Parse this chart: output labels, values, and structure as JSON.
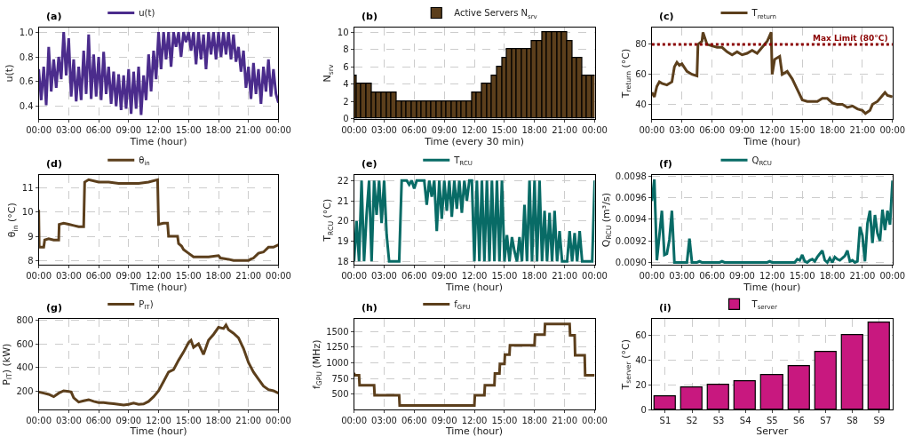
{
  "chart_data": [
    {
      "type": "line",
      "title": "(a)",
      "xlabel": "Time (hour)",
      "ylabel": "u(t)",
      "grid": true,
      "legend": "top",
      "x": [
        0,
        0.25,
        0.5,
        0.75,
        1,
        1.25,
        1.5,
        1.75,
        2,
        2.25,
        2.5,
        2.75,
        3,
        3.25,
        3.5,
        3.75,
        4,
        4.25,
        4.5,
        4.75,
        5,
        5.25,
        5.5,
        5.75,
        6,
        6.25,
        6.5,
        6.75,
        7,
        7.25,
        7.5,
        7.75,
        8,
        8.25,
        8.5,
        8.75,
        9,
        9.25,
        9.5,
        9.75,
        10,
        10.25,
        10.5,
        10.75,
        11,
        11.25,
        11.5,
        11.75,
        12,
        12.25,
        12.5,
        12.75,
        13,
        13.25,
        13.5,
        13.75,
        14,
        14.25,
        14.5,
        14.75,
        15,
        15.25,
        15.5,
        15.75,
        16,
        16.25,
        16.5,
        16.75,
        17,
        17.25,
        17.5,
        17.75,
        18,
        18.25,
        18.5,
        18.75,
        19,
        19.25,
        19.5,
        19.75,
        20,
        20.25,
        20.5,
        20.75,
        21,
        21.25,
        21.5,
        21.75,
        22,
        22.25,
        22.5,
        22.75,
        23,
        23.25,
        23.5,
        23.75,
        24
      ],
      "series": [
        {
          "name": "u(t)",
          "color": "#4b2c8c",
          "values": [
            0.7,
            0.45,
            0.72,
            0.41,
            0.88,
            0.52,
            0.78,
            0.55,
            0.8,
            0.62,
            1.0,
            0.65,
            0.95,
            0.48,
            0.78,
            0.44,
            0.72,
            0.45,
            0.85,
            0.5,
            0.98,
            0.46,
            0.82,
            0.48,
            0.8,
            0.45,
            0.84,
            0.5,
            0.72,
            0.42,
            0.68,
            0.4,
            0.66,
            0.37,
            0.65,
            0.38,
            0.7,
            0.34,
            0.68,
            0.38,
            0.72,
            0.33,
            0.65,
            0.45,
            0.82,
            0.52,
            0.85,
            0.62,
            1.0,
            0.7,
            1.0,
            0.78,
            1.0,
            0.72,
            1.0,
            0.88,
            1.0,
            0.8,
            1.0,
            0.92,
            1.0,
            0.85,
            1.0,
            0.74,
            1.0,
            0.78,
            0.98,
            0.7,
            1.0,
            0.82,
            1.0,
            0.78,
            1.0,
            0.8,
            1.0,
            0.82,
            1.0,
            0.78,
            0.98,
            0.76,
            0.88,
            0.68,
            0.85,
            0.55,
            0.72,
            0.46,
            0.75,
            0.5,
            0.7,
            0.42,
            0.72,
            0.52,
            0.78,
            0.48,
            0.7,
            0.5,
            0.43
          ]
        }
      ],
      "xlim": [
        0,
        24
      ],
      "ylim": [
        0.3,
        1.035
      ],
      "xticks": [
        {
          "value": 0,
          "label": "00:00"
        },
        {
          "value": 3,
          "label": "03:00"
        },
        {
          "value": 6,
          "label": "06:00"
        },
        {
          "value": 9,
          "label": "09:00"
        },
        {
          "value": 12,
          "label": "12:00"
        },
        {
          "value": 15,
          "label": "15:00"
        },
        {
          "value": 18,
          "label": "18:00"
        },
        {
          "value": 21,
          "label": "21:00"
        },
        {
          "value": 24,
          "label": "00:00"
        }
      ],
      "yticks": [
        0.4,
        0.6,
        0.8,
        {
          "value": 1.0,
          "label": "1.0"
        }
      ]
    },
    {
      "type": "bar",
      "title": "(b)",
      "xlabel": "Time (every 30 min)",
      "ylabel": "N$_{srv}$",
      "grid": true,
      "legend": "top",
      "x": [
        0,
        0.5,
        1,
        1.5,
        2,
        2.5,
        3,
        3.5,
        4,
        4.5,
        5,
        5.5,
        6,
        6.5,
        7,
        7.5,
        8,
        8.5,
        9,
        9.5,
        10,
        10.5,
        11,
        11.5,
        12,
        12.5,
        13,
        13.5,
        14,
        14.5,
        15,
        15.5,
        16,
        16.5,
        17,
        17.5,
        18,
        18.5,
        19,
        19.5,
        20,
        20.5,
        21,
        21.5,
        22,
        22.5,
        23,
        23.5,
        24
      ],
      "series": [
        {
          "name": "Active Servers N$_{srv}$",
          "color": "#5c3f1c",
          "values": [
            5,
            4,
            4,
            4,
            3,
            3,
            3,
            3,
            3,
            2,
            2,
            2,
            2,
            2,
            2,
            2,
            2,
            2,
            2,
            2,
            2,
            2,
            2,
            2,
            3,
            3,
            4,
            4,
            5,
            6,
            7,
            8,
            8,
            8,
            8,
            8,
            9,
            9,
            10,
            10,
            10,
            10,
            10,
            9,
            7,
            7,
            5,
            5,
            5
          ]
        }
      ],
      "xlim": [
        0,
        24
      ],
      "ylim": [
        0,
        10.5
      ],
      "xticks": [
        {
          "value": 0,
          "label": "00:00"
        },
        {
          "value": 3,
          "label": "03:00"
        },
        {
          "value": 6,
          "label": "06:00"
        },
        {
          "value": 9,
          "label": "09:00"
        },
        {
          "value": 12,
          "label": "12:00"
        },
        {
          "value": 15,
          "label": "15:00"
        },
        {
          "value": 18,
          "label": "18:00"
        },
        {
          "value": 21,
          "label": "21:00"
        },
        {
          "value": 24,
          "label": "00:00"
        }
      ],
      "yticks": [
        0,
        2,
        4,
        6,
        8,
        10
      ]
    },
    {
      "type": "line",
      "title": "(c)",
      "xlabel": "Time (hour)",
      "ylabel": "T$_{return}$ (°C)",
      "grid": true,
      "legend": "top",
      "x": [
        0,
        0.25,
        0.5,
        0.75,
        1,
        1.5,
        2,
        2.25,
        2.5,
        2.75,
        3,
        3.5,
        4,
        4.5,
        4.6,
        5,
        5.1,
        5.5,
        6,
        6.5,
        7,
        7.5,
        8,
        8.5,
        9,
        9.5,
        10,
        10.5,
        11,
        11.5,
        11.9,
        12,
        12.25,
        12.75,
        13,
        13.5,
        14,
        14.5,
        15,
        15.5,
        16,
        16.5,
        17,
        17.5,
        18,
        18.5,
        19,
        19.5,
        20,
        20.5,
        21,
        21.3,
        21.75,
        22,
        22.5,
        23,
        23.25,
        23.5,
        24
      ],
      "series": [
        {
          "name": "T$_{return}$",
          "color": "#5c3f1c",
          "values": [
            48,
            45,
            52,
            55,
            54,
            53,
            55,
            65,
            68,
            66,
            67,
            62,
            60,
            59,
            80,
            82,
            88,
            80,
            79,
            78,
            78,
            75,
            73,
            75,
            73,
            74,
            76,
            74,
            78,
            82,
            88,
            60,
            70,
            72,
            60,
            62,
            57,
            50,
            43,
            42,
            42,
            42,
            44,
            44,
            41,
            40,
            40,
            38,
            39,
            37,
            36,
            34,
            36,
            40,
            42,
            46,
            48,
            46,
            45
          ]
        }
      ],
      "ref_lines": [
        {
          "axis": "y",
          "value": 80,
          "label": "Max Limit (80°C)",
          "color": "#8b0000",
          "line_style": "dotted"
        }
      ],
      "xlim": [
        0,
        24
      ],
      "ylim": [
        30.5,
        91
      ],
      "xticks": [
        {
          "value": 0,
          "label": "00:00"
        },
        {
          "value": 3,
          "label": "03:00"
        },
        {
          "value": 6,
          "label": "06:00"
        },
        {
          "value": 9,
          "label": "09:00"
        },
        {
          "value": 12,
          "label": "12:00"
        },
        {
          "value": 15,
          "label": "15:00"
        },
        {
          "value": 18,
          "label": "18:00"
        },
        {
          "value": 21,
          "label": "21:00"
        },
        {
          "value": 24,
          "label": "00:00"
        }
      ],
      "yticks": [
        40,
        60,
        80
      ]
    },
    {
      "type": "line",
      "title": "(d)",
      "xlabel": "Time (hour)",
      "ylabel": "θ$_{in}$ (°C)",
      "grid": true,
      "legend": "top",
      "x": [
        0,
        0.05,
        0.5,
        0.6,
        1,
        1.5,
        2,
        2.05,
        2.5,
        3,
        3.5,
        4,
        4.5,
        4.6,
        5,
        6,
        7,
        8,
        9,
        10,
        11,
        11.9,
        12,
        12.5,
        12.9,
        13,
        13.5,
        13.9,
        14,
        14.3,
        14.5,
        15,
        15.5,
        16,
        17,
        18,
        18.2,
        19,
        19.5,
        20,
        21,
        21.2,
        21.5,
        22,
        22.5,
        23,
        23.5,
        24
      ],
      "series": [
        {
          "name": "θ$_{in}$",
          "color": "#5c3f1c",
          "values": [
            10.1,
            8.55,
            8.55,
            8.85,
            8.9,
            8.85,
            8.85,
            9.5,
            9.55,
            9.5,
            9.45,
            9.4,
            9.4,
            11.25,
            11.35,
            11.25,
            11.25,
            11.2,
            11.2,
            11.2,
            11.25,
            11.35,
            9.5,
            9.55,
            9.55,
            9.0,
            9.0,
            9.0,
            8.7,
            8.6,
            8.45,
            8.3,
            8.15,
            8.15,
            8.15,
            8.2,
            8.1,
            8.05,
            8.0,
            8.0,
            8.0,
            8.05,
            8.1,
            8.3,
            8.35,
            8.55,
            8.55,
            8.65
          ]
        }
      ],
      "xlim": [
        0,
        24
      ],
      "ylim": [
        7.82,
        11.54
      ],
      "xticks": [
        {
          "value": 0,
          "label": "00:00"
        },
        {
          "value": 3,
          "label": "03:00"
        },
        {
          "value": 6,
          "label": "06:00"
        },
        {
          "value": 9,
          "label": "09:00"
        },
        {
          "value": 12,
          "label": "12:00"
        },
        {
          "value": 15,
          "label": "15:00"
        },
        {
          "value": 18,
          "label": "18:00"
        },
        {
          "value": 21,
          "label": "21:00"
        },
        {
          "value": 24,
          "label": "00:00"
        }
      ],
      "yticks": [
        8,
        9,
        10,
        11
      ]
    },
    {
      "type": "line",
      "title": "(e)",
      "xlabel": "Time (hour)",
      "ylabel": "T$_{RCU}$ (°C)",
      "grid": true,
      "legend": "top",
      "x": [
        0,
        0.25,
        0.5,
        0.75,
        1,
        1.25,
        1.5,
        1.75,
        2,
        2.25,
        2.5,
        2.75,
        3,
        3.25,
        3.5,
        3.75,
        4,
        4.25,
        4.5,
        4.75,
        5,
        5.25,
        5.5,
        5.75,
        6,
        6.25,
        6.5,
        6.75,
        7,
        7.25,
        7.5,
        7.75,
        8,
        8.25,
        8.5,
        8.75,
        9,
        9.25,
        9.5,
        9.75,
        10,
        10.25,
        10.5,
        10.75,
        11,
        11.25,
        11.5,
        11.75,
        12,
        12.25,
        12.5,
        12.75,
        13,
        13.25,
        13.5,
        13.75,
        14,
        14.25,
        14.5,
        14.75,
        15,
        15.25,
        15.5,
        15.75,
        16,
        16.25,
        16.5,
        16.75,
        17,
        17.25,
        17.5,
        17.75,
        18,
        18.25,
        18.5,
        18.75,
        19,
        19.25,
        19.5,
        19.75,
        20,
        20.25,
        20.5,
        20.75,
        21,
        21.25,
        21.5,
        21.75,
        22,
        22.25,
        22.5,
        22.75,
        23,
        23.25,
        23.5,
        23.75,
        24
      ],
      "series": [
        {
          "name": "T$_{RCU}$",
          "color": "#086b66",
          "values": [
            18,
            20,
            18,
            22,
            18,
            20.3,
            22,
            18,
            22,
            20.3,
            22,
            19.9,
            22,
            19.3,
            18,
            18,
            18,
            18,
            18,
            22,
            22,
            22,
            21.8,
            22,
            21.6,
            22,
            22,
            22,
            22,
            20.8,
            22,
            21.2,
            22,
            19.5,
            22,
            20.1,
            22,
            20.5,
            22,
            20.2,
            22,
            20.6,
            22,
            20.4,
            22,
            21.0,
            22,
            22,
            18,
            22,
            18,
            22,
            18,
            22,
            18,
            22,
            18,
            22,
            18,
            22,
            18,
            19.3,
            18,
            19.2,
            18.5,
            18,
            19.2,
            18,
            20.8,
            18,
            22,
            18,
            22,
            18,
            22,
            18,
            20.5,
            18,
            20.4,
            18,
            20.5,
            18,
            19.5,
            18,
            18,
            18,
            19.5,
            18,
            19.4,
            18,
            19.5,
            18,
            18,
            18,
            18,
            18,
            22
          ]
        }
      ],
      "xlim": [
        0,
        24
      ],
      "ylim": [
        17.83,
        22.27
      ],
      "xticks": [
        {
          "value": 0,
          "label": "00:00"
        },
        {
          "value": 3,
          "label": "03:00"
        },
        {
          "value": 6,
          "label": "06:00"
        },
        {
          "value": 9,
          "label": "09:00"
        },
        {
          "value": 12,
          "label": "12:00"
        },
        {
          "value": 15,
          "label": "15:00"
        },
        {
          "value": 18,
          "label": "18:00"
        },
        {
          "value": 21,
          "label": "21:00"
        },
        {
          "value": 24,
          "label": "00:00"
        }
      ],
      "yticks": [
        18,
        19,
        20,
        21,
        22
      ]
    },
    {
      "type": "line",
      "title": "(f)",
      "xlabel": "Time (hour)",
      "ylabel": "Q$_{RCU}$ (m³/s)",
      "grid": true,
      "legend": "top",
      "x": [
        0,
        0.25,
        0.5,
        0.75,
        1,
        1.25,
        1.5,
        1.75,
        2,
        2.25,
        2.5,
        2.75,
        3,
        3.25,
        3.5,
        3.75,
        4,
        4.25,
        4.5,
        4.75,
        5,
        5.25,
        5.5,
        5.75,
        6,
        6.25,
        6.5,
        6.75,
        7,
        7.25,
        7.5,
        7.75,
        8,
        8.25,
        8.5,
        8.75,
        9,
        9.25,
        9.5,
        9.75,
        10,
        10.25,
        10.5,
        10.75,
        11,
        11.25,
        11.5,
        11.75,
        12,
        12.25,
        12.5,
        12.75,
        13,
        13.25,
        13.5,
        13.75,
        14,
        14.25,
        14.5,
        14.75,
        15,
        15.25,
        15.5,
        15.75,
        16,
        16.25,
        16.5,
        16.75,
        17,
        17.25,
        17.5,
        17.75,
        18,
        18.25,
        18.5,
        18.75,
        19,
        19.25,
        19.5,
        19.75,
        20,
        20.25,
        20.5,
        20.75,
        21,
        21.25,
        21.5,
        21.75,
        22,
        22.25,
        22.5,
        22.75,
        23,
        23.25,
        23.5,
        23.75,
        24
      ],
      "series": [
        {
          "name": "Q$_{RCU}$",
          "color": "#086b66",
          "values": [
            0.00957,
            0.00977,
            0.00902,
            0.00925,
            0.00948,
            0.00907,
            0.00908,
            0.00921,
            0.00948,
            0.009,
            0.009,
            0.009,
            0.009,
            0.009,
            0.009,
            0.00922,
            0.009,
            0.009,
            0.009,
            0.00901,
            0.009,
            0.009,
            0.009,
            0.009,
            0.009,
            0.009,
            0.009,
            0.009,
            0.00901,
            0.009,
            0.009,
            0.009,
            0.009,
            0.009,
            0.009,
            0.009,
            0.009,
            0.009,
            0.009,
            0.009,
            0.009,
            0.009,
            0.009,
            0.009,
            0.009,
            0.009,
            0.009,
            0.00901,
            0.009,
            0.009,
            0.009,
            0.009,
            0.009,
            0.009,
            0.009,
            0.009,
            0.009,
            0.009,
            0.00903,
            0.00902,
            0.00907,
            0.00901,
            0.009,
            0.00902,
            0.00903,
            0.00901,
            0.00905,
            0.00908,
            0.00911,
            0.00902,
            0.009,
            0.00904,
            0.009,
            0.00905,
            0.00903,
            0.00902,
            0.00904,
            0.00906,
            0.00911,
            0.00901,
            0.00902,
            0.009,
            0.00901,
            0.00933,
            0.00925,
            0.00901,
            0.00936,
            0.00948,
            0.00918,
            0.00944,
            0.00927,
            0.0092,
            0.00949,
            0.0093,
            0.00948,
            0.00935,
            0.00976
          ]
        }
      ],
      "xlim": [
        0,
        24
      ],
      "ylim": [
        0.008978,
        0.00981
      ],
      "xticks": [
        {
          "value": 0,
          "label": "00:00"
        },
        {
          "value": 3,
          "label": "03:00"
        },
        {
          "value": 6,
          "label": "06:00"
        },
        {
          "value": 9,
          "label": "09:00"
        },
        {
          "value": 12,
          "label": "12:00"
        },
        {
          "value": 15,
          "label": "15:00"
        },
        {
          "value": 18,
          "label": "18:00"
        },
        {
          "value": 21,
          "label": "21:00"
        },
        {
          "value": 24,
          "label": "00:00"
        }
      ],
      "yticks": [
        {
          "value": 0.009,
          "label": "0.0090"
        },
        {
          "value": 0.0092,
          "label": "0.0092"
        },
        {
          "value": 0.0094,
          "label": "0.0094"
        },
        {
          "value": 0.0096,
          "label": "0.0096"
        },
        {
          "value": 0.0098,
          "label": "0.0098"
        }
      ]
    },
    {
      "type": "line",
      "title": "(g)",
      "xlabel": "Time (hour)",
      "ylabel": "P$_{IT}$) (kW)",
      "grid": true,
      "legend": "top",
      "x": [
        0,
        0.5,
        1,
        1.5,
        2,
        2.5,
        3,
        3.25,
        3.5,
        4,
        4.5,
        5,
        5.5,
        6,
        6.5,
        7,
        7.5,
        8,
        8.5,
        9,
        9.5,
        10,
        10.5,
        11,
        11.5,
        12,
        12.5,
        13,
        13.5,
        14,
        14.5,
        15,
        15.25,
        15.5,
        16,
        16.5,
        17,
        17.5,
        18,
        18.5,
        18.75,
        19,
        19.5,
        20,
        20.5,
        21,
        21.5,
        22,
        22.5,
        23,
        23.5,
        24
      ],
      "series": [
        {
          "name": "P$_{IT}$)",
          "color": "#5c3f1c",
          "values": [
            190,
            180,
            170,
            150,
            180,
            200,
            195,
            190,
            140,
            105,
            115,
            125,
            110,
            100,
            100,
            95,
            90,
            85,
            80,
            85,
            95,
            85,
            88,
            110,
            150,
            200,
            280,
            360,
            380,
            460,
            530,
            610,
            630,
            570,
            600,
            510,
            630,
            680,
            740,
            730,
            760,
            720,
            690,
            650,
            560,
            440,
            360,
            300,
            240,
            210,
            200,
            180
          ]
        }
      ],
      "xlim": [
        0,
        24
      ],
      "ylim": [
        40,
        810
      ],
      "xticks": [
        {
          "value": 0,
          "label": "00:00"
        },
        {
          "value": 3,
          "label": "03:00"
        },
        {
          "value": 6,
          "label": "06:00"
        },
        {
          "value": 9,
          "label": "09:00"
        },
        {
          "value": 12,
          "label": "12:00"
        },
        {
          "value": 15,
          "label": "15:00"
        },
        {
          "value": 18,
          "label": "18:00"
        },
        {
          "value": 21,
          "label": "21:00"
        },
        {
          "value": 24,
          "label": "00:00"
        }
      ],
      "yticks": [
        200,
        400,
        600,
        800
      ]
    },
    {
      "type": "line",
      "title": "(h)",
      "xlabel": "Time (hour)",
      "ylabel": "f$_{GPU}$ (MHz)",
      "grid": true,
      "legend": "top",
      "x": [
        0,
        0.05,
        0.5,
        0.55,
        2,
        2.05,
        4.5,
        4.55,
        12,
        12.05,
        13,
        13.05,
        14,
        14.05,
        14.5,
        14.55,
        15,
        15.05,
        15.5,
        15.55,
        18,
        18.05,
        19,
        19.05,
        21.5,
        21.55,
        22,
        22.05,
        23,
        23.05,
        24
      ],
      "series": [
        {
          "name": "f$_{GPU}$",
          "color": "#5c3f1c",
          "values": [
            840,
            800,
            800,
            640,
            640,
            480,
            480,
            320,
            320,
            480,
            480,
            640,
            640,
            830,
            830,
            980,
            980,
            1130,
            1130,
            1280,
            1280,
            1450,
            1450,
            1620,
            1620,
            1440,
            1440,
            1120,
            1120,
            800,
            800
          ]
        }
      ],
      "xlim": [
        0,
        24
      ],
      "ylim": [
        252,
        1697
      ],
      "xticks": [
        {
          "value": 0,
          "label": "00:00"
        },
        {
          "value": 3,
          "label": "03:00"
        },
        {
          "value": 6,
          "label": "06:00"
        },
        {
          "value": 9,
          "label": "09:00"
        },
        {
          "value": 12,
          "label": "12:00"
        },
        {
          "value": 15,
          "label": "15:00"
        },
        {
          "value": 18,
          "label": "18:00"
        },
        {
          "value": 21,
          "label": "21:00"
        },
        {
          "value": 24,
          "label": "00:00"
        }
      ],
      "yticks": [
        500,
        750,
        1000,
        1250,
        1500
      ]
    },
    {
      "type": "bar",
      "title": "(i)",
      "xlabel": "Server",
      "ylabel": "T$_{server}$ (°C)",
      "grid": true,
      "legend": "top",
      "categories": [
        "S1",
        "S2",
        "S3",
        "S4",
        "S5",
        "S6",
        "S7",
        "S8",
        "S9"
      ],
      "series": [
        {
          "name": "T$_{server}$",
          "color": "#c8187f",
          "values": [
            10.5,
            17.5,
            20,
            23,
            28,
            35,
            46.5,
            60,
            69.5
          ]
        }
      ],
      "ylim": [
        0,
        72.7
      ],
      "yticks": [
        0,
        20,
        40,
        60
      ]
    }
  ]
}
